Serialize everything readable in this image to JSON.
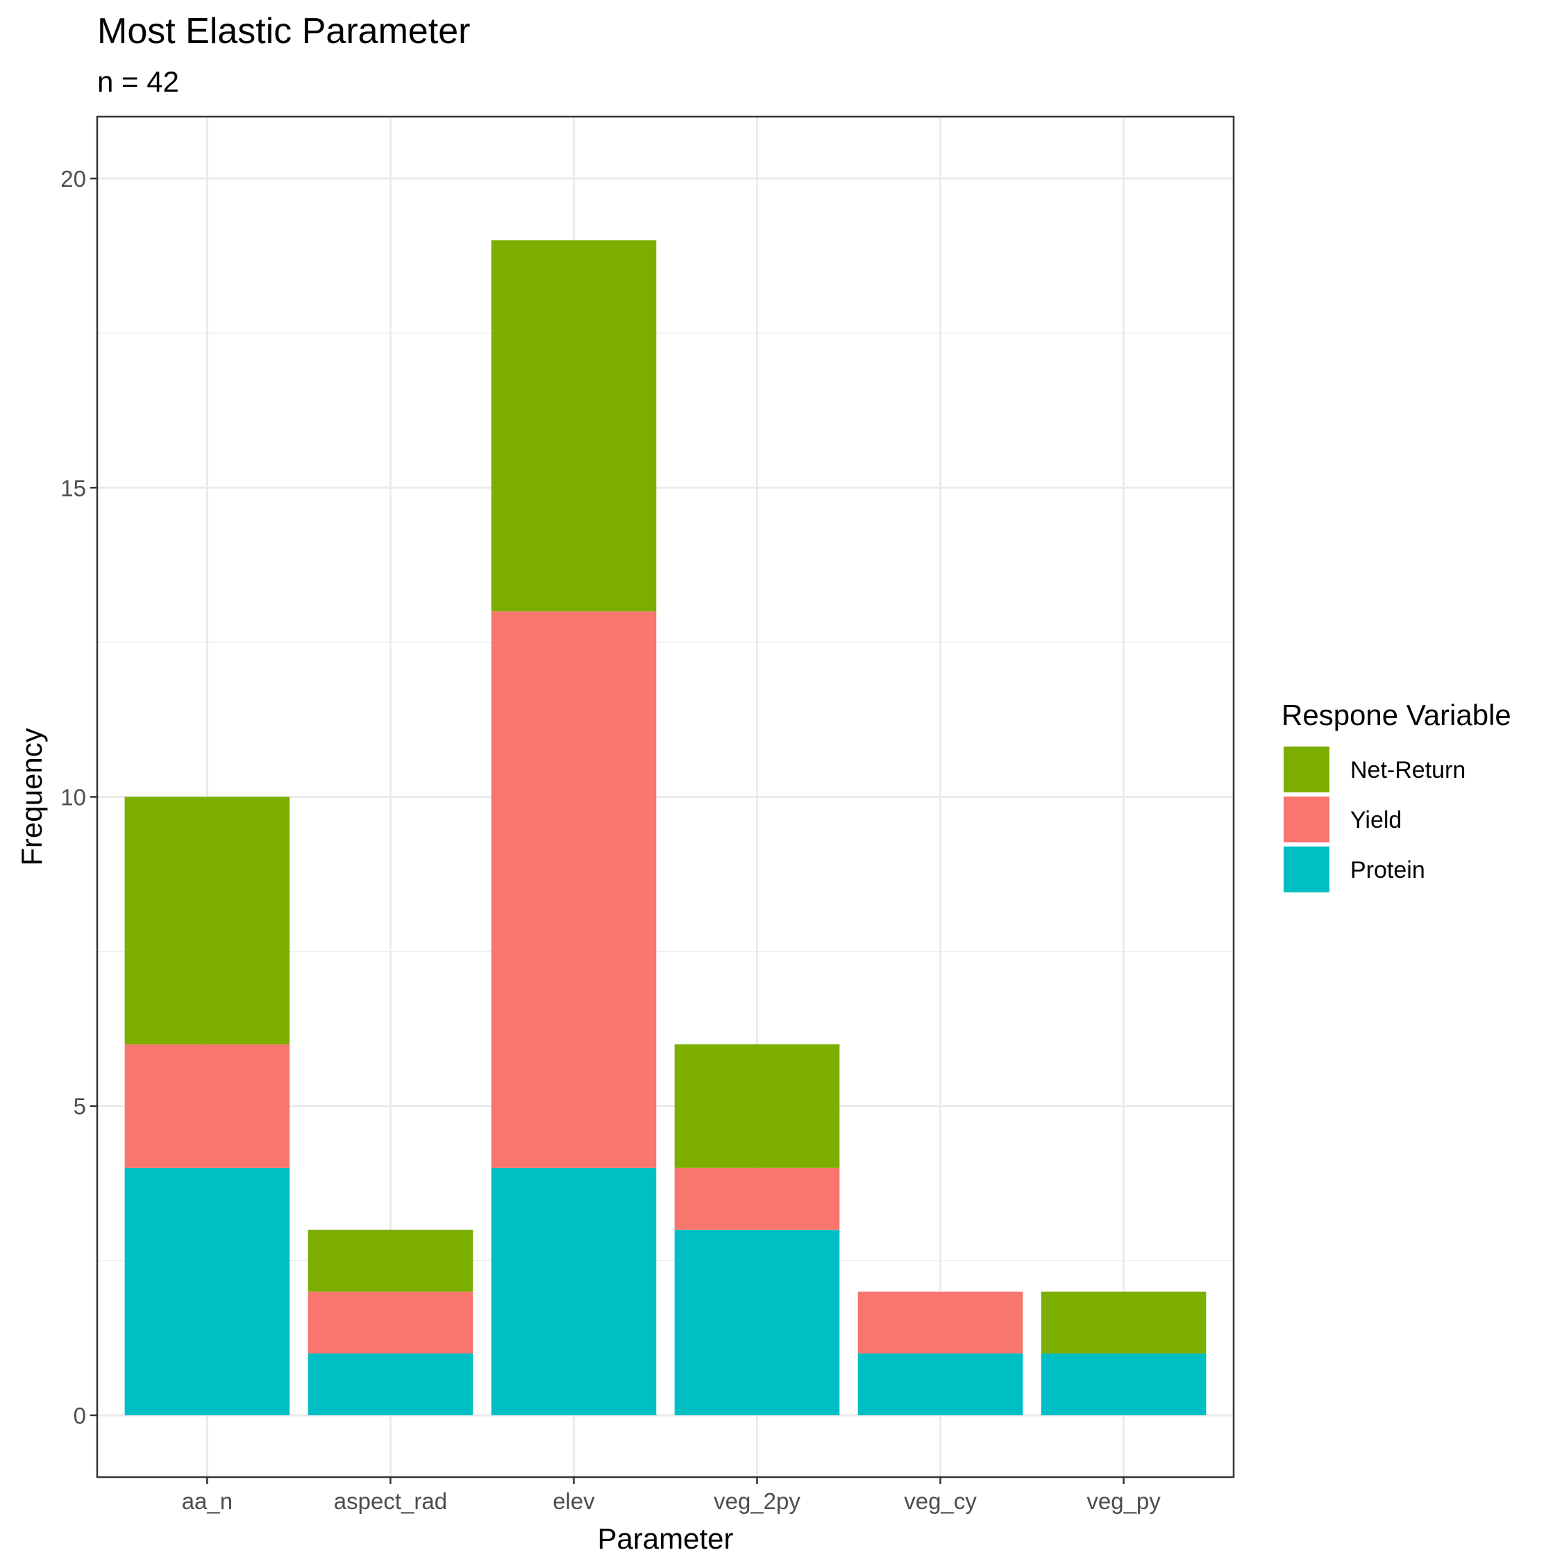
{
  "chart_data": {
    "type": "bar",
    "stacked": true,
    "title": "Most Elastic Parameter",
    "subtitle": "n = 42",
    "xlabel": "Parameter",
    "ylabel": "Frequency",
    "categories": [
      "aa_n",
      "aspect_rad",
      "elev",
      "veg_2py",
      "veg_cy",
      "veg_py"
    ],
    "series": [
      {
        "name": "Protein",
        "color": "#00BFC4",
        "values": [
          4,
          1,
          4,
          3,
          1,
          1
        ]
      },
      {
        "name": "Yield",
        "color": "#F8766D",
        "values": [
          2,
          1,
          9,
          1,
          1,
          0
        ]
      },
      {
        "name": "Net-Return",
        "color": "#7CAE00",
        "values": [
          4,
          1,
          6,
          2,
          0,
          1
        ]
      }
    ],
    "ylim": [
      -1,
      21
    ],
    "yticks": [
      0,
      5,
      10,
      15,
      20
    ],
    "grid": true,
    "legend": {
      "title": "Respone Variable",
      "position": "right",
      "order": [
        "Net-Return",
        "Yield",
        "Protein"
      ]
    }
  }
}
